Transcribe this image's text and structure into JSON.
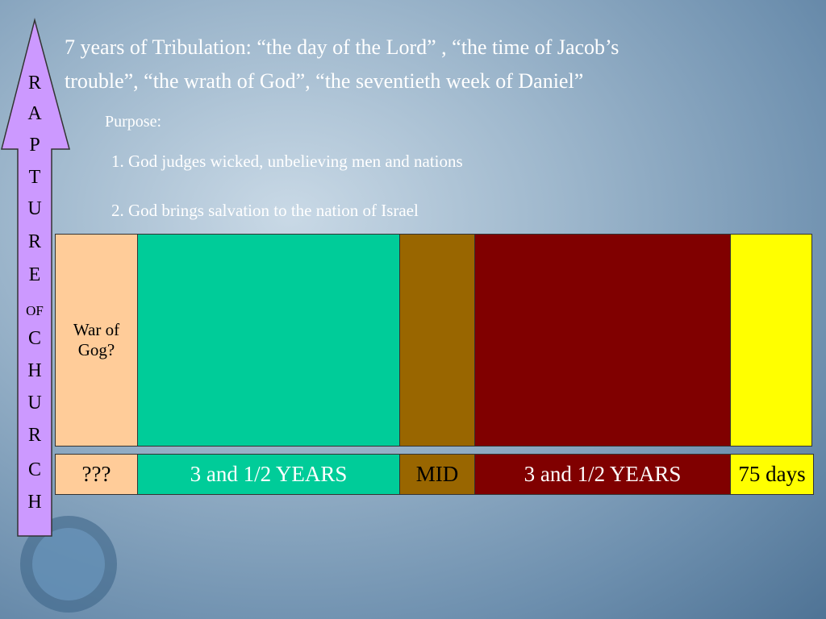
{
  "arrow": {
    "letters": [
      "R",
      "A",
      "P",
      "T",
      "U",
      "R",
      "E",
      "OF",
      "C",
      "H",
      "U",
      "R",
      "C",
      "H"
    ]
  },
  "title": {
    "line1": "7 years of Tribulation: “the day of the Lord” , “the time of Jacob’s",
    "line2": "trouble”, “the wrath of God”, “the seventieth week of Daniel”"
  },
  "purpose": {
    "heading": "Purpose:",
    "items": [
      "1. God judges wicked, unbelieving men and nations",
      "2. God brings salvation to the nation of Israel"
    ]
  },
  "timeline": {
    "top": {
      "war": "War of Gog?"
    },
    "bottom": [
      "???",
      "3 and 1/2 YEARS",
      "MID",
      "3 and 1/2 YEARS",
      "75 days"
    ]
  }
}
